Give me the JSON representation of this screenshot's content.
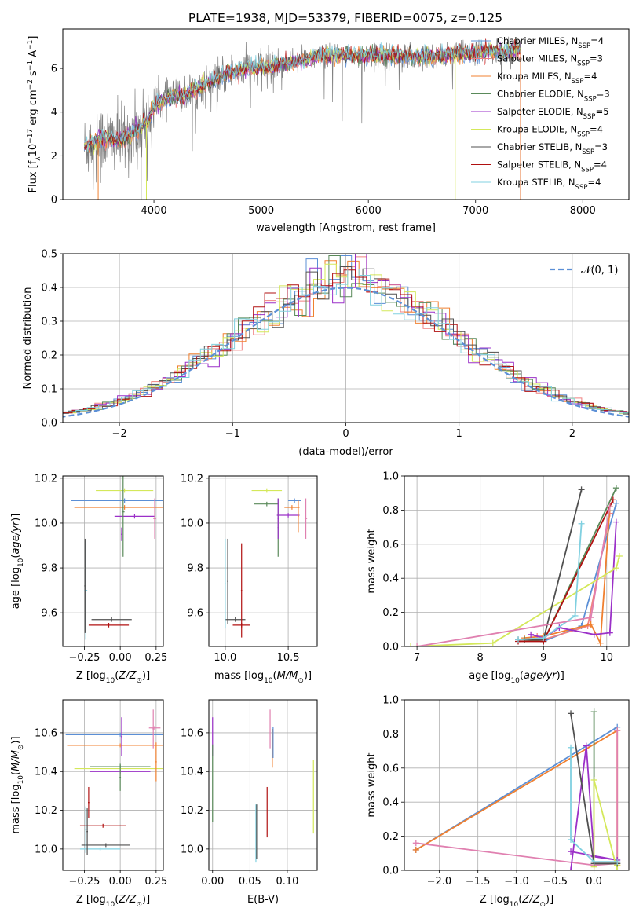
{
  "figure": {
    "title": "PLATE=1938, MJD=53379, FIBERID=0075, z=0.125"
  },
  "palette": {
    "Chabrier MILES": "#5b8fd6",
    "Salpeter MILES": "#f08080",
    "Kroupa MILES": "#f08030",
    "Chabrier ELODIE": "#5a8a5a",
    "Salpeter ELODIE": "#9b30c8",
    "Kroupa ELODIE": "#d4e85a",
    "Chabrier STELIB": "#505050",
    "Salpeter STELIB": "#b01010",
    "Kroupa STELIB": "#80d0e0",
    "extra_pink": "#e080b0"
  },
  "legend_spectrum": [
    {
      "label": "Chabrier MILES, N",
      "sub": "SSP",
      "tail": "=4",
      "key": "Chabrier MILES"
    },
    {
      "label": "Salpeter MILES, N",
      "sub": "SSP",
      "tail": "=3",
      "key": "Salpeter MILES"
    },
    {
      "label": "Kroupa MILES, N",
      "sub": "SSP",
      "tail": "=4",
      "key": "Kroupa MILES"
    },
    {
      "label": "Chabrier ELODIE, N",
      "sub": "SSP",
      "tail": "=3",
      "key": "Chabrier ELODIE"
    },
    {
      "label": "Salpeter ELODIE, N",
      "sub": "SSP",
      "tail": "=5",
      "key": "Salpeter ELODIE"
    },
    {
      "label": "Kroupa ELODIE, N",
      "sub": "SSP",
      "tail": "=4",
      "key": "Kroupa ELODIE"
    },
    {
      "label": "Chabrier STELIB, N",
      "sub": "SSP",
      "tail": "=3",
      "key": "Chabrier STELIB"
    },
    {
      "label": "Salpeter STELIB, N",
      "sub": "SSP",
      "tail": "=4",
      "key": "Salpeter STELIB"
    },
    {
      "label": "Kroupa STELIB, N",
      "sub": "SSP",
      "tail": "=4",
      "key": "Kroupa STELIB"
    }
  ],
  "legend_hist": {
    "label": "𝒩(0, 1)"
  },
  "chart_data": [
    {
      "id": "spectrum",
      "type": "line",
      "xlabel": "wavelength [Angstrom, rest frame]",
      "ylabel": "Flux [f_λ 10^-17 erg cm^-2 s^-1 A^-1]",
      "xlim": [
        3150,
        8430
      ],
      "ylim": [
        0,
        7.8
      ],
      "xticks": [
        4000,
        5000,
        6000,
        7000,
        8000
      ],
      "yticks": [
        0,
        2,
        4,
        6
      ],
      "continuum": [
        [
          3350,
          2.4
        ],
        [
          3500,
          2.8
        ],
        [
          3700,
          2.7
        ],
        [
          3800,
          3.0
        ],
        [
          3950,
          3.6
        ],
        [
          4000,
          4.3
        ],
        [
          4100,
          4.6
        ],
        [
          4300,
          4.8
        ],
        [
          4500,
          5.3
        ],
        [
          4700,
          5.8
        ],
        [
          4900,
          6.0
        ],
        [
          5100,
          6.1
        ],
        [
          5300,
          6.3
        ],
        [
          5500,
          6.5
        ],
        [
          5700,
          6.6
        ],
        [
          5900,
          6.6
        ],
        [
          6100,
          6.6
        ],
        [
          6300,
          6.55
        ],
        [
          6500,
          6.55
        ],
        [
          6700,
          6.6
        ],
        [
          6900,
          6.7
        ],
        [
          7100,
          6.75
        ],
        [
          7300,
          6.8
        ],
        [
          7500,
          6.85
        ],
        [
          7700,
          6.9
        ],
        [
          7900,
          7.0
        ],
        [
          8100,
          7.05
        ],
        [
          8300,
          7.1
        ]
      ],
      "series": [
        "Chabrier MILES",
        "Salpeter MILES",
        "Kroupa MILES",
        "Chabrier ELODIE",
        "Salpeter ELODIE",
        "Kroupa ELODIE",
        "Chabrier STELIB",
        "Salpeter STELIB",
        "Kroupa STELIB"
      ]
    },
    {
      "id": "residuals",
      "type": "line",
      "xlabel": "(data-model)/error",
      "ylabel": "Normed distribution",
      "xlim": [
        -2.5,
        2.5
      ],
      "ylim": [
        0,
        0.5
      ],
      "xticks": [
        -2,
        -1,
        0,
        1,
        2
      ],
      "xticklabels": [
        "−2",
        "−1",
        "0",
        "1",
        "2"
      ],
      "yticks": [
        0.0,
        0.1,
        0.2,
        0.3,
        0.4,
        0.5
      ],
      "yticklabels": [
        "0.0",
        "0.1",
        "0.2",
        "0.3",
        "0.4",
        "0.5"
      ],
      "gaussian": {
        "mean": 0,
        "sigma": 1
      },
      "bin_width": 0.1
    },
    {
      "id": "age_vs_Z",
      "type": "scatter",
      "xlabel": "Z [log₁₀(Z/Z⊙)]",
      "ylabel": "age [log₁₀(age/yr)]",
      "xlim": [
        -0.4,
        0.3
      ],
      "ylim": [
        9.45,
        10.21
      ],
      "xticks": [
        -0.25,
        0.0,
        0.25
      ],
      "xticklabels": [
        "−0.25",
        "0.00",
        "0.25"
      ],
      "yticks": [
        9.6,
        9.8,
        10.0,
        10.2
      ],
      "yticklabels": [
        "9.6",
        "9.8",
        "10.0",
        "10.2"
      ],
      "points": [
        {
          "key": "Chabrier MILES",
          "x": 0.03,
          "xerr": 0.37,
          "y": 10.1,
          "yerr": 0.01
        },
        {
          "key": "Kroupa MILES",
          "x": 0.03,
          "xerr": 0.35,
          "y": 10.07,
          "yerr": 0.01
        },
        {
          "key": "Kroupa ELODIE",
          "x": 0.03,
          "xerr": 0.2,
          "y": 10.145,
          "yerr": 0.01
        },
        {
          "key": "Salpeter ELODIE",
          "x": 0.1,
          "xerr": 0.14,
          "y": 10.03,
          "yerr": 0.01
        },
        {
          "key": "Chabrier ELODIE",
          "x": 0.02,
          "xerr": 0.01,
          "y": 10.05,
          "yerr": 0.2
        },
        {
          "key": "extra_pink",
          "x": 0.24,
          "xerr": 0.01,
          "y": 10.02,
          "yerr": 0.09
        },
        {
          "key": "Chabrier STELIB",
          "x": -0.06,
          "xerr": 0.14,
          "y": 9.57,
          "yerr": 0.01
        },
        {
          "key": "Salpeter STELIB",
          "x": -0.08,
          "xerr": 0.14,
          "y": 9.545,
          "yerr": 0.01
        },
        {
          "key": "Kroupa STELIB",
          "x": -0.24,
          "xerr": 0.01,
          "y": 9.7,
          "yerr": 0.22
        },
        {
          "key": "Chabrier STELIB",
          "x": -0.245,
          "xerr": 0.005,
          "y": 9.72,
          "yerr": 0.21
        },
        {
          "key": "Salpeter ELODIE",
          "x": 0.01,
          "xerr": 0.005,
          "y": 9.95,
          "yerr": 0.03
        }
      ]
    },
    {
      "id": "age_vs_mass",
      "type": "scatter",
      "xlabel": "mass [log₁₀(M/M⊙)]",
      "ylabel": "",
      "xlim": [
        9.87,
        10.73
      ],
      "ylim": [
        9.45,
        10.21
      ],
      "xticks": [
        10.0,
        10.5
      ],
      "xticklabels": [
        "10.0",
        "10.5"
      ],
      "yticks": [
        9.6,
        9.8,
        10.0,
        10.2
      ],
      "yticklabels": [
        "9.6",
        "9.8",
        "10.0",
        "10.2"
      ],
      "points": [
        {
          "key": "Chabrier MILES",
          "x": 10.55,
          "xerr": 0.05,
          "y": 10.1,
          "yerr": 0.01
        },
        {
          "key": "Kroupa MILES",
          "x": 10.53,
          "xerr": 0.06,
          "y": 10.07,
          "yerr": 0.01
        },
        {
          "key": "Kroupa ELODIE",
          "x": 10.33,
          "xerr": 0.12,
          "y": 10.145,
          "yerr": 0.01
        },
        {
          "key": "Salpeter ELODIE",
          "x": 10.5,
          "xerr": 0.09,
          "y": 10.035,
          "yerr": 0.01
        },
        {
          "key": "Chabrier ELODIE",
          "x": 10.33,
          "xerr": 0.1,
          "y": 10.085,
          "yerr": 0.01
        },
        {
          "key": "Chabrier ELODIE",
          "x": 10.42,
          "xerr": 0.005,
          "y": 9.98,
          "yerr": 0.13
        },
        {
          "key": "extra_pink",
          "x": 10.64,
          "xerr": 0.01,
          "y": 10.02,
          "yerr": 0.09
        },
        {
          "key": "Kroupa MILES",
          "x": 10.58,
          "xerr": 0.005,
          "y": 10.03,
          "yerr": 0.07
        },
        {
          "key": "Chabrier STELIB",
          "x": 10.08,
          "xerr": 0.08,
          "y": 9.57,
          "yerr": 0.01
        },
        {
          "key": "Salpeter STELIB",
          "x": 10.13,
          "xerr": 0.07,
          "y": 9.545,
          "yerr": 0.01
        },
        {
          "key": "Salpeter STELIB",
          "x": 10.13,
          "xerr": 0.005,
          "y": 9.7,
          "yerr": 0.21
        },
        {
          "key": "Kroupa STELIB",
          "x": 10.0,
          "xerr": 0.005,
          "y": 9.73,
          "yerr": 0.2
        },
        {
          "key": "Chabrier STELIB",
          "x": 10.02,
          "xerr": 0.005,
          "y": 9.74,
          "yerr": 0.19
        },
        {
          "key": "Salpeter ELODIE",
          "x": 10.42,
          "xerr": 0.005,
          "y": 10.02,
          "yerr": 0.09
        }
      ]
    },
    {
      "id": "mass_weight_vs_age",
      "type": "line",
      "xlabel": "age [log₁₀(age/yr)]",
      "ylabel": "mass weight",
      "xlim": [
        6.8,
        10.35
      ],
      "ylim": [
        0,
        1.0
      ],
      "xticks": [
        7,
        8,
        9,
        10
      ],
      "xticklabels": [
        "7",
        "8",
        "9",
        "10"
      ],
      "yticks": [
        0.0,
        0.2,
        0.4,
        0.6,
        0.8,
        1.0
      ],
      "yticklabels": [
        "0.0",
        "0.2",
        "0.4",
        "0.6",
        "0.8",
        "1.0"
      ],
      "series": [
        {
          "key": "Chabrier MILES",
          "x": [
            8.7,
            9.0,
            9.6,
            10.15
          ],
          "y": [
            0.04,
            0.03,
            0.12,
            0.84
          ]
        },
        {
          "key": "Salpeter MILES",
          "x": [
            8.9,
            9.0,
            9.7,
            10.05
          ],
          "y": [
            0.06,
            0.04,
            0.12,
            0.78
          ]
        },
        {
          "key": "Kroupa MILES",
          "x": [
            8.7,
            9.0,
            9.75,
            9.9,
            10.05
          ],
          "y": [
            0.05,
            0.06,
            0.13,
            0.02,
            0.82
          ]
        },
        {
          "key": "Chabrier ELODIE",
          "x": [
            8.7,
            9.0,
            10.15
          ],
          "y": [
            0.04,
            0.03,
            0.93
          ]
        },
        {
          "key": "Salpeter ELODIE",
          "x": [
            8.8,
            9.0,
            9.25,
            9.8,
            10.05,
            10.15
          ],
          "y": [
            0.07,
            0.05,
            0.11,
            0.07,
            0.08,
            0.73
          ]
        },
        {
          "key": "Kroupa ELODIE",
          "x": [
            6.9,
            8.2,
            10.15,
            10.2
          ],
          "y": [
            0.0,
            0.02,
            0.46,
            0.53
          ]
        },
        {
          "key": "Chabrier STELIB",
          "x": [
            8.6,
            9.0,
            9.6
          ],
          "y": [
            0.04,
            0.04,
            0.92
          ]
        },
        {
          "key": "Salpeter STELIB",
          "x": [
            8.6,
            9.0,
            10.1
          ],
          "y": [
            0.03,
            0.03,
            0.86
          ]
        },
        {
          "key": "Kroupa STELIB",
          "x": [
            8.6,
            9.0,
            9.5,
            9.6
          ],
          "y": [
            0.04,
            0.05,
            0.18,
            0.72
          ]
        },
        {
          "key": "extra_pink",
          "x": [
            7.0,
            9.75,
            10.05
          ],
          "y": [
            0.0,
            0.17,
            0.82
          ]
        }
      ]
    },
    {
      "id": "mass_vs_Z",
      "type": "scatter",
      "xlabel": "Z [log₁₀(Z/Z⊙)]",
      "ylabel": "mass [log₁₀(M/M⊙)]",
      "xlim": [
        -0.4,
        0.3
      ],
      "ylim": [
        9.89,
        10.77
      ],
      "xticks": [
        -0.25,
        0.0,
        0.25
      ],
      "xticklabels": [
        "−0.25",
        "0.00",
        "0.25"
      ],
      "yticks": [
        10.0,
        10.2,
        10.4,
        10.6
      ],
      "yticklabels": [
        "10.0",
        "10.2",
        "10.4",
        "10.6"
      ],
      "points": [
        {
          "key": "Chabrier MILES",
          "x": 0.0,
          "xerr": 0.38,
          "y": 10.59,
          "yerr": 0.01
        },
        {
          "key": "Kroupa MILES",
          "x": 0.0,
          "xerr": 0.37,
          "y": 10.535,
          "yerr": 0.01
        },
        {
          "key": "Kroupa ELODIE",
          "x": 0.0,
          "xerr": 0.32,
          "y": 10.415,
          "yerr": 0.01
        },
        {
          "key": "Chabrier ELODIE",
          "x": 0.0,
          "xerr": 0.21,
          "y": 10.425,
          "yerr": 0.01
        },
        {
          "key": "Salpeter ELODIE",
          "x": 0.0,
          "xerr": 0.21,
          "y": 10.4,
          "yerr": 0.01
        },
        {
          "key": "extra_pink",
          "x": 0.24,
          "xerr": 0.04,
          "y": 10.625,
          "yerr": 0.01
        },
        {
          "key": "Salpeter ELODIE",
          "x": 0.01,
          "xerr": 0.005,
          "y": 10.58,
          "yerr": 0.1
        },
        {
          "key": "Chabrier ELODIE",
          "x": 0.0,
          "xerr": 0.005,
          "y": 10.37,
          "yerr": 0.07
        },
        {
          "key": "Kroupa MILES",
          "x": 0.25,
          "xerr": 0.005,
          "y": 10.45,
          "yerr": 0.1
        },
        {
          "key": "extra_pink",
          "x": 0.23,
          "xerr": 0.005,
          "y": 10.62,
          "yerr": 0.1
        },
        {
          "key": "Salpeter STELIB",
          "x": -0.12,
          "xerr": 0.16,
          "y": 10.12,
          "yerr": 0.01
        },
        {
          "key": "Chabrier STELIB",
          "x": -0.1,
          "xerr": 0.17,
          "y": 10.02,
          "yerr": 0.01
        },
        {
          "key": "Kroupa STELIB",
          "x": -0.14,
          "xerr": 0.14,
          "y": 10.0,
          "yerr": 0.01
        },
        {
          "key": "Salpeter STELIB",
          "x": -0.22,
          "xerr": 0.005,
          "y": 10.24,
          "yerr": 0.08
        },
        {
          "key": "Kroupa STELIB",
          "x": -0.24,
          "xerr": 0.005,
          "y": 10.1,
          "yerr": 0.12
        },
        {
          "key": "Chabrier STELIB",
          "x": -0.23,
          "xerr": 0.005,
          "y": 10.09,
          "yerr": 0.12
        }
      ]
    },
    {
      "id": "mass_vs_ebv",
      "type": "scatter",
      "xlabel": "E(B-V)",
      "ylabel": "",
      "xlim": [
        -0.005,
        0.14
      ],
      "ylim": [
        9.89,
        10.77
      ],
      "xticks": [
        0.0,
        0.05,
        0.1
      ],
      "xticklabels": [
        "0.00",
        "0.05",
        "0.10"
      ],
      "yticks": [
        10.0,
        10.2,
        10.4,
        10.6
      ],
      "yticklabels": [
        "10.0",
        "10.2",
        "10.4",
        "10.6"
      ],
      "points": [
        {
          "key": "Salpeter ELODIE",
          "x": 0.0,
          "xerr": 0.0,
          "y": 10.58,
          "yerr": 0.1
        },
        {
          "key": "Chabrier ELODIE",
          "x": 0.0,
          "xerr": 0.0,
          "y": 10.34,
          "yerr": 0.2
        },
        {
          "key": "extra_pink",
          "x": 0.077,
          "xerr": 0.0,
          "y": 10.62,
          "yerr": 0.1
        },
        {
          "key": "Kroupa MILES",
          "x": 0.08,
          "xerr": 0.0,
          "y": 10.52,
          "yerr": 0.1
        },
        {
          "key": "Chabrier MILES",
          "x": 0.081,
          "xerr": 0.0,
          "y": 10.55,
          "yerr": 0.08
        },
        {
          "key": "Salpeter STELIB",
          "x": 0.073,
          "xerr": 0.0,
          "y": 10.19,
          "yerr": 0.13
        },
        {
          "key": "Kroupa STELIB",
          "x": 0.058,
          "xerr": 0.0,
          "y": 10.08,
          "yerr": 0.15
        },
        {
          "key": "Chabrier STELIB",
          "x": 0.059,
          "xerr": 0.0,
          "y": 10.09,
          "yerr": 0.14
        },
        {
          "key": "Kroupa ELODIE",
          "x": 0.135,
          "xerr": 0.0,
          "y": 10.27,
          "yerr": 0.19
        }
      ]
    },
    {
      "id": "mass_weight_vs_Z",
      "type": "line",
      "xlabel": "Z [log₁₀(Z/Z⊙)]",
      "ylabel": "mass weight",
      "xlim": [
        -2.45,
        0.45
      ],
      "ylim": [
        0,
        1.0
      ],
      "xticks": [
        -2.0,
        -1.5,
        -1.0,
        -0.5,
        0.0
      ],
      "xticklabels": [
        "−2.0",
        "−1.5",
        "−1.0",
        "−0.5",
        "0.0"
      ],
      "yticks": [
        0.0,
        0.2,
        0.4,
        0.6,
        0.8,
        1.0
      ],
      "yticklabels": [
        "0.0",
        "0.2",
        "0.4",
        "0.6",
        "0.8",
        "1.0"
      ],
      "series": [
        {
          "key": "Chabrier MILES",
          "x": [
            -2.3,
            0.3
          ],
          "y": [
            0.12,
            0.84
          ]
        },
        {
          "key": "Kroupa MILES",
          "x": [
            -2.3,
            0.3,
            0.3
          ],
          "y": [
            0.12,
            0.82,
            0.03
          ]
        },
        {
          "key": "extra_pink",
          "x": [
            -2.3,
            0.0,
            0.3,
            0.3
          ],
          "y": [
            0.16,
            0.03,
            0.04,
            0.82
          ]
        },
        {
          "key": "Chabrier ELODIE",
          "x": [
            0.0,
            0.0,
            0.3
          ],
          "y": [
            0.93,
            0.04,
            0.04
          ]
        },
        {
          "key": "Salpeter ELODIE",
          "x": [
            -0.3,
            -0.1,
            0.0,
            0.3,
            -0.3
          ],
          "y": [
            0.0,
            0.73,
            0.08,
            0.06,
            0.11
          ]
        },
        {
          "key": "Kroupa ELODIE",
          "x": [
            0.0,
            0.0,
            0.3,
            0.3
          ],
          "y": [
            0.02,
            0.53,
            0.0,
            0.03
          ]
        },
        {
          "key": "Chabrier STELIB",
          "x": [
            -0.3,
            0.0,
            0.3
          ],
          "y": [
            0.92,
            0.04,
            0.04
          ]
        },
        {
          "key": "Kroupa STELIB",
          "x": [
            -0.3,
            -0.3,
            0.0,
            0.3
          ],
          "y": [
            0.72,
            0.18,
            0.05,
            0.05
          ]
        }
      ]
    }
  ]
}
